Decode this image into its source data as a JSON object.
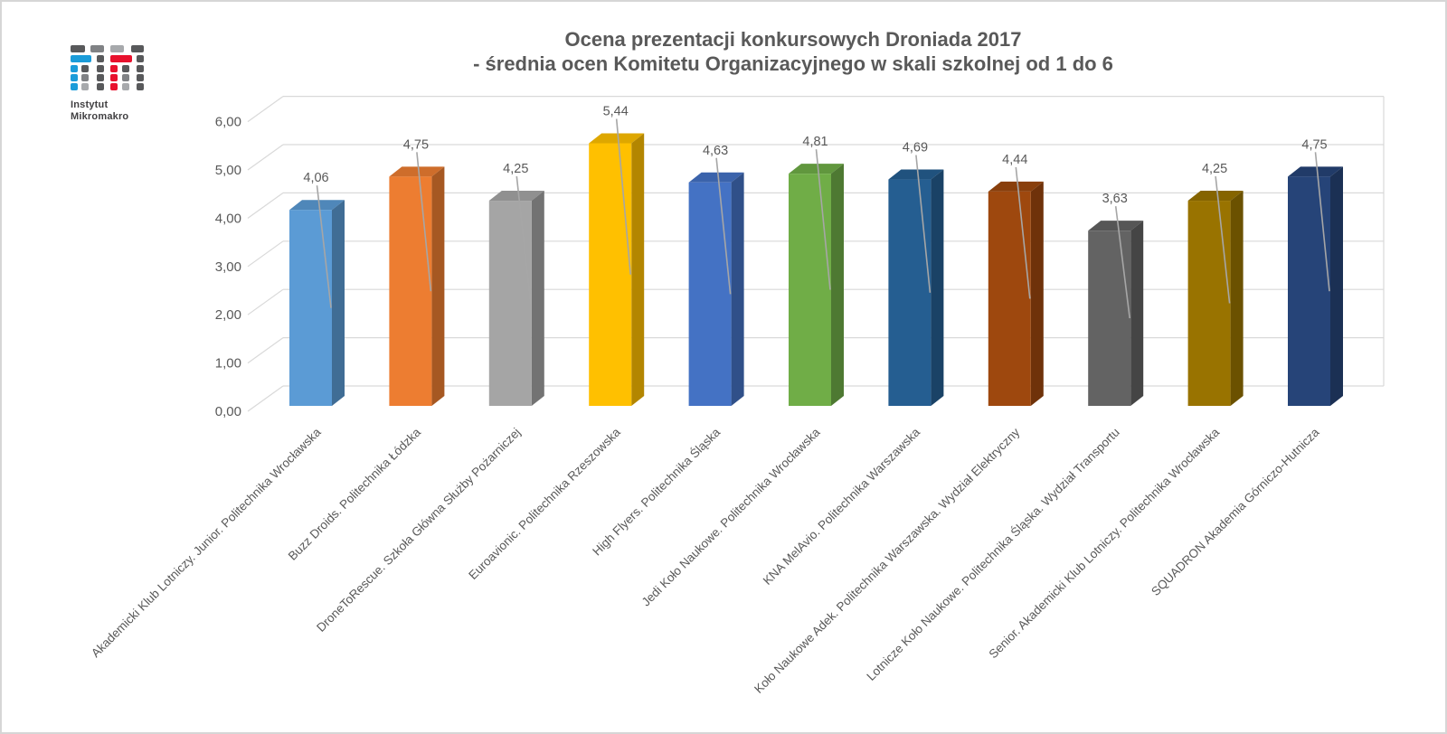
{
  "logo": {
    "line1": "Instytut",
    "line2": "Mikromakro",
    "colors": {
      "blue": "#1B9CD9",
      "red": "#E8112D",
      "dark": "#58595B",
      "mid": "#808285",
      "light": "#A7A9AC"
    }
  },
  "title": {
    "line1": "Ocena prezentacji konkursowych Droniada 2017",
    "line2": "- średnia ocen Komitetu Organizacyjnego w skali szkolnej od 1 do 6"
  },
  "chart_data": {
    "type": "bar",
    "style": "3d-column",
    "title": "Ocena prezentacji konkursowych Droniada 2017 - średnia ocen Komitetu Organizacyjnego w skali szkolnej od 1 do 6",
    "categories": [
      "Akademicki Klub Lotniczy. Junior. Politechnika Wrocławska",
      "Buzz Droids. Politechnika Łódzka",
      "DroneToRescue. Szkoła Główna Służby Pożarniczej",
      "Euroavionic. Politechnika Rzeszowska",
      "High Flyers. Politechnika Śląska",
      "Jedi Koło Naukowe. Politechnika Wrocławska",
      "KNA MelAvio. Politechnika Warszawska",
      "Koło Naukowe Adek. Politechnika Warszawska. Wydział Elektryczny",
      "Lotnicze Koło Naukowe. Politechnika Śląska. Wydział Transportu",
      "Senior. Akademicki Klub Lotniczy. Politechnika Wrocławska",
      "SQUADRON Akademia Górniczo-Hutnicza"
    ],
    "values": [
      4.06,
      4.75,
      4.25,
      5.44,
      4.63,
      4.81,
      4.69,
      4.44,
      3.63,
      4.25,
      4.75
    ],
    "value_labels": [
      "4,06",
      "4,75",
      "4,25",
      "5,44",
      "4,63",
      "4,81",
      "4,69",
      "4,44",
      "3,63",
      "4,25",
      "4,75"
    ],
    "bar_colors": [
      "#5B9BD5",
      "#ED7D31",
      "#A5A5A5",
      "#FFC000",
      "#4472C4",
      "#70AD47",
      "#255E91",
      "#9E480E",
      "#636363",
      "#997300",
      "#264478"
    ],
    "y_ticks": [
      "0,00",
      "1,00",
      "2,00",
      "3,00",
      "4,00",
      "5,00",
      "6,00"
    ],
    "ylim": [
      0,
      6
    ],
    "y_step": 1,
    "grid": true,
    "legend": false,
    "xlabel": "",
    "ylabel": "",
    "colors": {
      "grid": "#D9D9D9",
      "wall_edge": "#D9D9D9",
      "text": "#595959",
      "leader": "#A6A6A6"
    }
  }
}
